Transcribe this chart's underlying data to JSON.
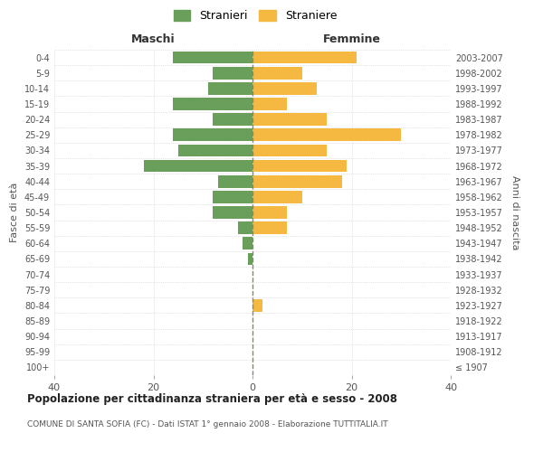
{
  "age_groups": [
    "100+",
    "95-99",
    "90-94",
    "85-89",
    "80-84",
    "75-79",
    "70-74",
    "65-69",
    "60-64",
    "55-59",
    "50-54",
    "45-49",
    "40-44",
    "35-39",
    "30-34",
    "25-29",
    "20-24",
    "15-19",
    "10-14",
    "5-9",
    "0-4"
  ],
  "birth_years": [
    "≤ 1907",
    "1908-1912",
    "1913-1917",
    "1918-1922",
    "1923-1927",
    "1928-1932",
    "1933-1937",
    "1938-1942",
    "1943-1947",
    "1948-1952",
    "1953-1957",
    "1958-1962",
    "1963-1967",
    "1968-1972",
    "1973-1977",
    "1978-1982",
    "1983-1987",
    "1988-1992",
    "1993-1997",
    "1998-2002",
    "2003-2007"
  ],
  "maschi": [
    0,
    0,
    0,
    0,
    0,
    0,
    0,
    1,
    2,
    3,
    8,
    8,
    7,
    22,
    15,
    16,
    8,
    16,
    9,
    8,
    16
  ],
  "femmine": [
    0,
    0,
    0,
    0,
    2,
    0,
    0,
    0,
    0,
    7,
    7,
    10,
    18,
    19,
    15,
    30,
    15,
    7,
    13,
    10,
    21
  ],
  "maschi_color": "#6a9f5b",
  "femmine_color": "#f5b942",
  "background_color": "#ffffff",
  "grid_color": "#cccccc",
  "center_line_color": "#888866",
  "title": "Popolazione per cittadinanza straniera per età e sesso - 2008",
  "subtitle": "COMUNE DI SANTA SOFIA (FC) - Dati ISTAT 1° gennaio 2008 - Elaborazione TUTTITALIA.IT",
  "xlabel_left": "Maschi",
  "xlabel_right": "Femmine",
  "ylabel_left": "Fasce di età",
  "ylabel_right": "Anni di nascita",
  "legend_maschi": "Stranieri",
  "legend_femmine": "Straniere",
  "xlim": 40,
  "bar_height": 0.8
}
